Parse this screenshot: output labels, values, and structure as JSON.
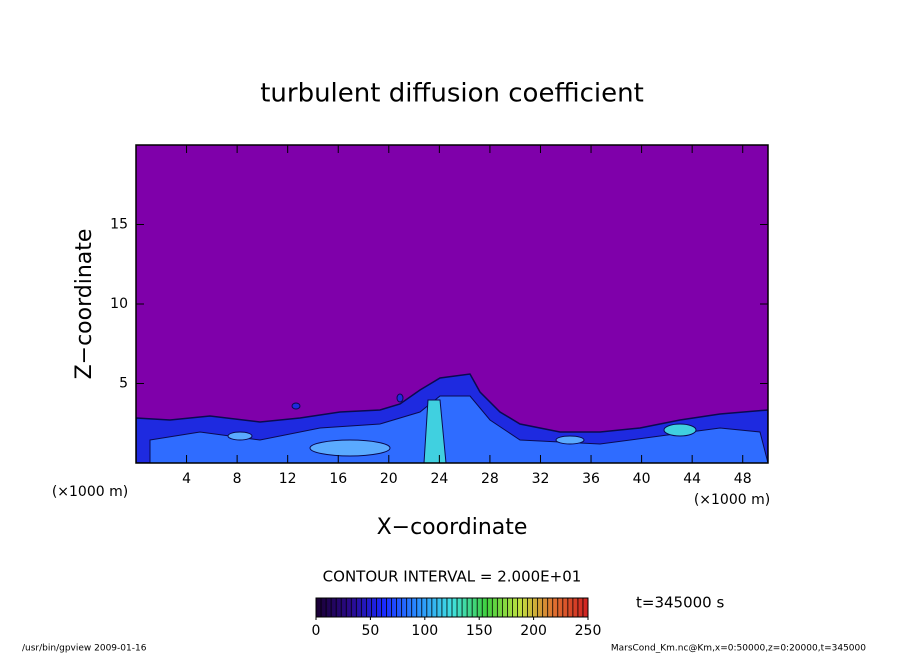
{
  "chart_data": {
    "type": "contour",
    "title": "turbulent diffusion coefficient",
    "x_label": "X−coordinate",
    "y_label": "Z−coordinate",
    "x_unit": "(×1000 m)",
    "y_unit": "(×1000 m)",
    "xlim": [
      0,
      50
    ],
    "xticks": [
      4,
      8,
      12,
      16,
      20,
      24,
      28,
      32,
      36,
      40,
      44,
      48
    ],
    "ylim": [
      0,
      20
    ],
    "yticks": [
      5,
      10,
      15
    ],
    "contour_interval_label": "CONTOUR INTERVAL = 2.000E+01",
    "colorbar": {
      "lim": [
        0,
        250
      ],
      "ticks": [
        0,
        50,
        100,
        150,
        200,
        250
      ],
      "colors": [
        "#1a0033",
        "#2a0a8a",
        "#1a2aff",
        "#2a90ff",
        "#40e0e0",
        "#40d040",
        "#c0e040",
        "#e07030",
        "#d02020"
      ]
    },
    "time_label": "t=345000 s",
    "footer_left": "/usr/bin/gpview   2009-01-16",
    "footer_right": "MarsCond_Km.nc@Km,x=0:50000,z=0:20000,t=345000"
  }
}
